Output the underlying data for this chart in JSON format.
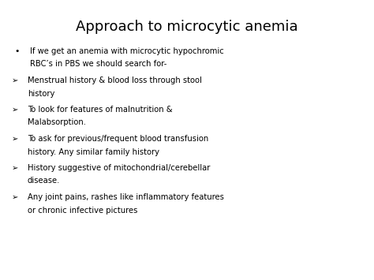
{
  "title": "Approach to microcytic anemia",
  "background_color": "#ffffff",
  "text_color": "#000000",
  "title_fontsize": 13,
  "body_fontsize": 7.2,
  "bullet_item": {
    "symbol": "•",
    "text_line1": "If we get an anemia with microcytic hypochromic",
    "text_line2": "RBC’s in PBS we should search for-"
  },
  "arrow_items": [
    {
      "line1": "Menstrual history & blood loss through stool",
      "line2": "history"
    },
    {
      "line1": "To look for features of malnutrition &",
      "line2": "Malabsorption."
    },
    {
      "line1": "To ask for previous/frequent blood transfusion",
      "line2": "history. Any similar family history"
    },
    {
      "line1": "History suggestive of mitochondrial/cerebellar",
      "line2": "disease."
    },
    {
      "line1": "Any joint pains, rashes like inflammatory features",
      "line2": "or chronic infective pictures"
    }
  ]
}
